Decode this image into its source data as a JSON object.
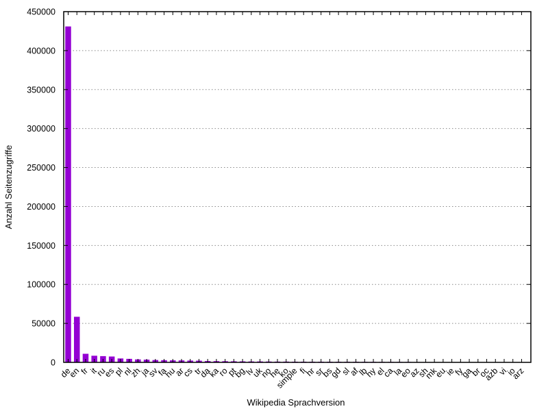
{
  "chart_data": {
    "type": "bar",
    "title": "",
    "xlabel": "Wikipedia Sprachversion",
    "ylabel": "Anzahl Seitenzugriffe",
    "ylim": [
      0,
      450000
    ],
    "yticks": [
      0,
      50000,
      100000,
      150000,
      200000,
      250000,
      300000,
      350000,
      400000,
      450000
    ],
    "grid": "horizontal",
    "bar_color": "#9400d3",
    "categories": [
      "de",
      "en",
      "fr",
      "it",
      "ru",
      "es",
      "pl",
      "nl",
      "zh",
      "ja",
      "sv",
      "fa",
      "hu",
      "ar",
      "cs",
      "tr",
      "da",
      "ka",
      "ro",
      "pt",
      "bg",
      "lv",
      "uk",
      "no",
      "he",
      "ko",
      "simple",
      "fi",
      "hr",
      "sr",
      "bs",
      "gd",
      "sl",
      "af",
      "lb",
      "hy",
      "el",
      "ca",
      "la",
      "eo",
      "az",
      "sh",
      "mk",
      "eu",
      "ie",
      "fy",
      "ga",
      "br",
      "oc",
      "azb",
      "vi",
      "io",
      "arz"
    ],
    "values": [
      431000,
      58500,
      11000,
      8500,
      8000,
      7500,
      5000,
      4500,
      3800,
      3500,
      3000,
      2800,
      2600,
      2500,
      2300,
      2200,
      1700,
      1600,
      1500,
      1400,
      1300,
      1200,
      1200,
      1100,
      1000,
      1000,
      900,
      900,
      850,
      850,
      800,
      800,
      750,
      750,
      700,
      700,
      650,
      650,
      600,
      600,
      500,
      450,
      400,
      400,
      350,
      350,
      300,
      300,
      250,
      250,
      200,
      200,
      150
    ]
  }
}
